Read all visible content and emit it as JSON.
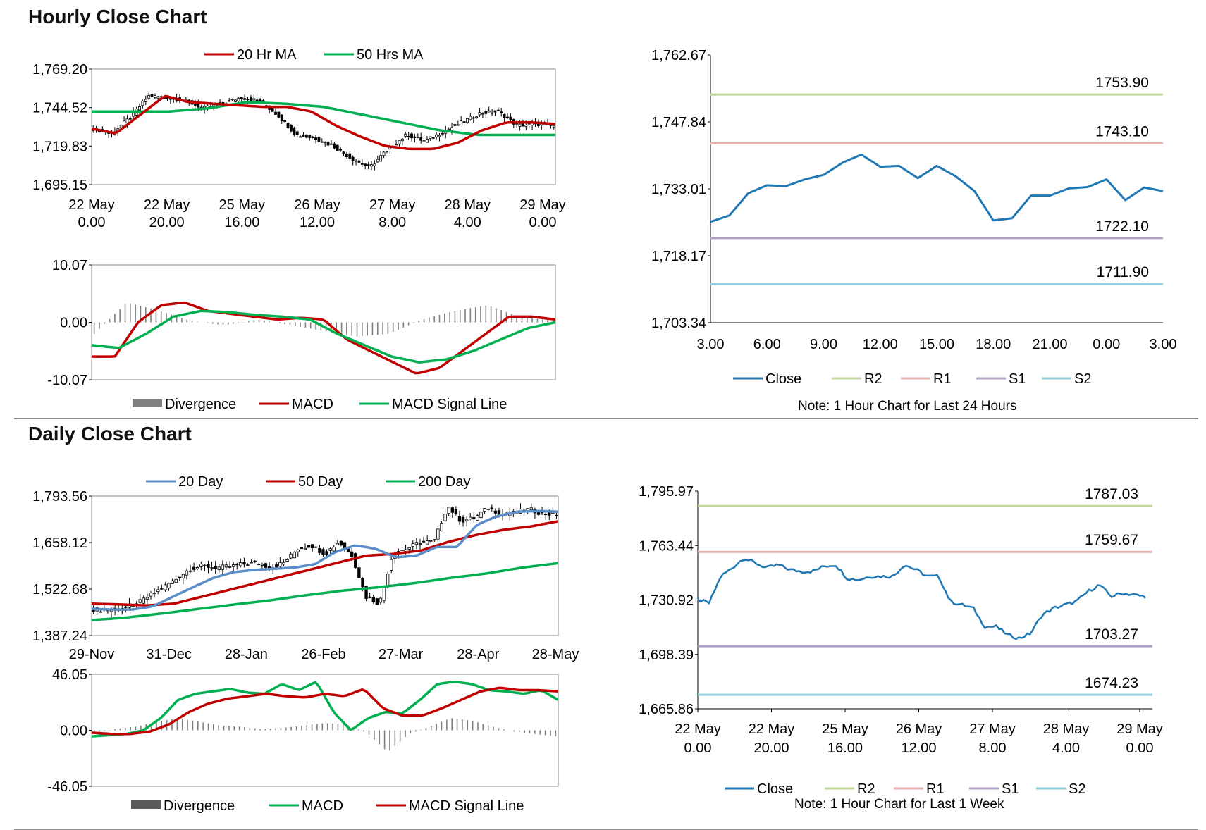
{
  "sections": {
    "hourly_title": "Hourly Close Chart",
    "daily_title": "Daily Close Chart"
  },
  "notes": {
    "hourly": "Note: 1 Hour Chart for Last 24 Hours",
    "weekly": "Note: 1 Hour Chart for Last 1 Week"
  },
  "colors": {
    "red": "#c00000",
    "green": "#00b050",
    "blue": "#5b8ec9",
    "close": "#1f77b4",
    "r2": "#c4d79b",
    "r1": "#e6b0ac",
    "s1": "#b1a0c7",
    "s2": "#92cddc",
    "divergence": "#808080"
  },
  "chart_data": [
    {
      "id": "hourly-price",
      "type": "candlestick",
      "legend": [
        "20 Hr MA",
        "50 Hrs MA"
      ],
      "yticks": [
        "1,769.20",
        "1,744.52",
        "1,719.83",
        "1,695.15"
      ],
      "ylim": [
        1695.15,
        1769.2
      ],
      "xticks": [
        {
          "l1": "22 May",
          "l2": "0.00"
        },
        {
          "l1": "22 May",
          "l2": "20.00"
        },
        {
          "l1": "25 May",
          "l2": "16.00"
        },
        {
          "l1": "26 May",
          "l2": "12.00"
        },
        {
          "l1": "27 May",
          "l2": "8.00"
        },
        {
          "l1": "28 May",
          "l2": "4.00"
        },
        {
          "l1": "29 May",
          "l2": "0.00"
        }
      ],
      "close_anchors": [
        1731,
        1728,
        1738,
        1752,
        1751,
        1749,
        1744,
        1747,
        1751,
        1749,
        1740,
        1727,
        1725,
        1720,
        1712,
        1706,
        1718,
        1727,
        1723,
        1729,
        1735,
        1741,
        1742,
        1733,
        1734,
        1733
      ],
      "ma20_anchors": [
        1731,
        1728,
        1740,
        1752,
        1748,
        1747,
        1746,
        1745,
        1745,
        1742,
        1733,
        1726,
        1720,
        1718,
        1718,
        1722,
        1730,
        1735,
        1735,
        1734
      ],
      "ma50_anchors": [
        1742,
        1742,
        1742,
        1744,
        1748,
        1747,
        1745,
        1740,
        1735,
        1730,
        1727,
        1727,
        1727
      ],
      "series_name": "Close"
    },
    {
      "id": "hourly-macd",
      "type": "macd",
      "legend": [
        "Divergence",
        "MACD",
        "MACD Signal Line"
      ],
      "yticks": [
        "10.07",
        "0.00",
        "-10.07"
      ],
      "ylim": [
        -10.07,
        10.07
      ],
      "macd_anchors": [
        -6,
        -6,
        0,
        3,
        3.5,
        2,
        1.5,
        1,
        0.5,
        0.8,
        0.5,
        -3,
        -5,
        -7,
        -9,
        -8,
        -5,
        -2,
        1,
        1,
        0.5
      ],
      "signal_anchors": [
        -4,
        -4.5,
        -2,
        1,
        2,
        1.8,
        1.3,
        1,
        0.5,
        -2,
        -4,
        -6,
        -7,
        -6.5,
        -5,
        -3,
        -1,
        0
      ],
      "divergence_anchors": [
        -2,
        3.5,
        2,
        0.2,
        -0.5,
        0.5,
        -0.5,
        -1.5,
        -2.5,
        -2,
        0.5,
        2,
        3,
        1,
        0.3
      ]
    },
    {
      "id": "hourly-close-24h",
      "type": "line",
      "ylim": [
        1703.34,
        1762.67
      ],
      "yticks": [
        "1,762.67",
        "1,747.84",
        "1,733.01",
        "1,718.17",
        "1,703.34"
      ],
      "xticks": [
        "3.00",
        "6.00",
        "9.00",
        "12.00",
        "15.00",
        "18.00",
        "21.00",
        "0.00",
        "3.00"
      ],
      "x": [
        3,
        4,
        5,
        6,
        7,
        8,
        9,
        10,
        11,
        12,
        13,
        14,
        15,
        16,
        17,
        18,
        19,
        20,
        21,
        22,
        23,
        24,
        25,
        26,
        27
      ],
      "close": [
        1725.7,
        1727.1,
        1732.0,
        1733.8,
        1733.6,
        1735.1,
        1736.1,
        1738.8,
        1740.6,
        1737.9,
        1738.1,
        1735.4,
        1738.1,
        1735.8,
        1732.5,
        1726.0,
        1726.5,
        1731.5,
        1731.5,
        1733.1,
        1733.4,
        1735.1,
        1730.5,
        1733.3,
        1732.5
      ],
      "levels": [
        {
          "name": "R2",
          "value": 1753.9,
          "label": "1753.90"
        },
        {
          "name": "R1",
          "value": 1743.1,
          "label": "1743.10"
        },
        {
          "name": "S1",
          "value": 1722.1,
          "label": "1722.10"
        },
        {
          "name": "S2",
          "value": 1711.9,
          "label": "1711.90"
        }
      ],
      "legend": [
        "Close",
        "R2",
        "R1",
        "S1",
        "S2"
      ]
    },
    {
      "id": "daily-price",
      "type": "candlestick",
      "legend": [
        "20 Day",
        "50 Day",
        "200 Day"
      ],
      "yticks": [
        "1,793.56",
        "1,658.12",
        "1,522.68",
        "1,387.24"
      ],
      "ylim": [
        1387.24,
        1793.56
      ],
      "xticks": [
        "29-Nov",
        "31-Dec",
        "28-Jan",
        "26-Feb",
        "27-Mar",
        "28-Apr",
        "28-May"
      ],
      "close_anchors": [
        1463,
        1462,
        1468,
        1475,
        1500,
        1525,
        1550,
        1580,
        1590,
        1585,
        1588,
        1595,
        1600,
        1585,
        1600,
        1640,
        1650,
        1625,
        1660,
        1620,
        1500,
        1480,
        1630,
        1640,
        1660,
        1660,
        1765,
        1720,
        1730,
        1760,
        1740,
        1745,
        1755,
        1742,
        1740
      ],
      "ma20_anchors": [
        1465,
        1463,
        1463,
        1472,
        1500,
        1528,
        1555,
        1572,
        1578,
        1582,
        1585,
        1595,
        1630,
        1650,
        1640,
        1615,
        1620,
        1645,
        1645,
        1710,
        1735,
        1748,
        1750,
        1748
      ],
      "ma50_anchors": [
        1480,
        1478,
        1475,
        1480,
        1500,
        1520,
        1540,
        1560,
        1580,
        1600,
        1620,
        1625,
        1635,
        1660,
        1680,
        1695,
        1705,
        1720
      ],
      "ma200_anchors": [
        1432,
        1440,
        1452,
        1465,
        1478,
        1490,
        1505,
        1518,
        1528,
        1540,
        1555,
        1568,
        1585,
        1598
      ]
    },
    {
      "id": "daily-macd",
      "type": "macd",
      "legend": [
        "Divergence",
        "MACD",
        "MACD Signal Line"
      ],
      "yticks": [
        "46.05",
        "0.00",
        "-46.05"
      ],
      "ylim": [
        -46.05,
        46.05
      ],
      "macd_anchors": [
        -5,
        -4,
        -3,
        0,
        10,
        25,
        30,
        32,
        34,
        31,
        30,
        38,
        33,
        40,
        15,
        0,
        10,
        15,
        14,
        25,
        38,
        40,
        38,
        33,
        32,
        30,
        33,
        25
      ],
      "signal_anchors": [
        -2,
        -3,
        -3,
        -1,
        5,
        15,
        22,
        26,
        28,
        30,
        28,
        27,
        30,
        28,
        34,
        18,
        12,
        12,
        18,
        25,
        32,
        35,
        33,
        33,
        32
      ],
      "divergence_anchors": [
        -2,
        1,
        3,
        7,
        10,
        7,
        4,
        3,
        1,
        2,
        4,
        6,
        5,
        -2,
        -18,
        -3,
        3,
        10,
        8,
        3,
        -1,
        -3,
        -5
      ]
    },
    {
      "id": "weekly-close",
      "type": "line",
      "ylim": [
        1665.86,
        1795.97
      ],
      "yticks": [
        "1,795.97",
        "1,763.44",
        "1,730.92",
        "1,698.39",
        "1,665.86"
      ],
      "xticks": [
        {
          "l1": "22 May",
          "l2": "0.00"
        },
        {
          "l1": "22 May",
          "l2": "20.00"
        },
        {
          "l1": "25 May",
          "l2": "16.00"
        },
        {
          "l1": "26 May",
          "l2": "12.00"
        },
        {
          "l1": "27 May",
          "l2": "8.00"
        },
        {
          "l1": "28 May",
          "l2": "4.00"
        },
        {
          "l1": "29 May",
          "l2": "0.00"
        }
      ],
      "close_anchors": [
        1731,
        1729,
        1745,
        1750,
        1756,
        1753,
        1750,
        1752,
        1749,
        1748,
        1748,
        1751,
        1752,
        1744,
        1743,
        1745,
        1745,
        1745,
        1752,
        1749,
        1745,
        1745,
        1730,
        1728,
        1726,
        1715,
        1715,
        1710,
        1708,
        1711,
        1722,
        1726,
        1728,
        1730,
        1736,
        1740,
        1733,
        1735,
        1734,
        1733
      ],
      "levels": [
        {
          "name": "R2",
          "value": 1787.03,
          "label": "1787.03"
        },
        {
          "name": "R1",
          "value": 1759.67,
          "label": "1759.67"
        },
        {
          "name": "S1",
          "value": 1703.27,
          "label": "1703.27"
        },
        {
          "name": "S2",
          "value": 1674.23,
          "label": "1674.23"
        }
      ],
      "legend": [
        "Close",
        "R2",
        "R1",
        "S1",
        "S2"
      ]
    }
  ]
}
